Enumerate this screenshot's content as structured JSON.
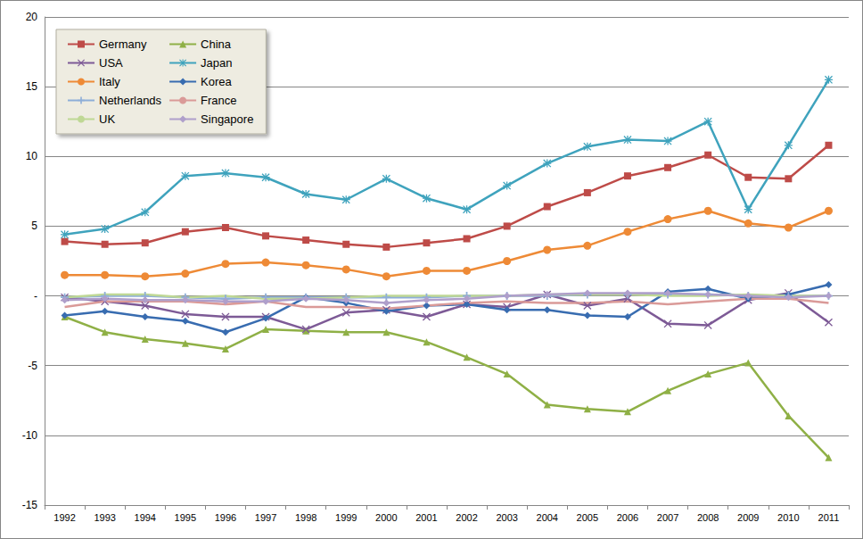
{
  "chart_data": {
    "type": "line",
    "categories": [
      "1992",
      "1993",
      "1994",
      "1995",
      "1996",
      "1997",
      "1998",
      "1999",
      "2000",
      "2001",
      "2002",
      "2003",
      "2004",
      "2005",
      "2006",
      "2007",
      "2008",
      "2009",
      "2010",
      "2011"
    ],
    "series": [
      {
        "name": "Germany",
        "color": "#BE4B48",
        "marker": "square",
        "values": [
          3.9,
          3.7,
          3.8,
          4.6,
          4.9,
          4.3,
          4.0,
          3.7,
          3.5,
          3.8,
          4.1,
          5.0,
          6.4,
          7.4,
          8.6,
          9.2,
          10.1,
          8.5,
          8.4,
          10.8
        ]
      },
      {
        "name": "China",
        "color": "#8FB046",
        "marker": "triangle",
        "values": [
          -1.5,
          -2.6,
          -3.1,
          -3.4,
          -3.8,
          -2.4,
          -2.5,
          -2.6,
          -2.6,
          -3.3,
          -4.4,
          -5.6,
          -7.8,
          -8.1,
          -8.3,
          -6.8,
          -5.6,
          -4.8,
          -8.6,
          -11.6
        ]
      },
      {
        "name": "USA",
        "color": "#7D5A96",
        "marker": "x",
        "values": [
          -0.1,
          -0.4,
          -0.7,
          -1.3,
          -1.5,
          -1.5,
          -2.4,
          -1.2,
          -1.0,
          -1.5,
          -0.6,
          -0.8,
          0.1,
          -0.7,
          -0.2,
          -2.0,
          -2.1,
          -0.3,
          0.2,
          -1.9
        ]
      },
      {
        "name": "Japan",
        "color": "#3FA3BD",
        "marker": "asterisk",
        "values": [
          4.4,
          4.8,
          6.0,
          8.6,
          8.8,
          8.5,
          7.3,
          6.9,
          8.4,
          7.0,
          6.2,
          7.9,
          9.5,
          10.7,
          11.2,
          11.1,
          12.5,
          6.2,
          10.8,
          15.5
        ]
      },
      {
        "name": "Italy",
        "color": "#EE8A36",
        "marker": "circle",
        "values": [
          1.5,
          1.5,
          1.4,
          1.6,
          2.3,
          2.4,
          2.2,
          1.9,
          1.4,
          1.8,
          1.8,
          2.5,
          3.3,
          3.6,
          4.6,
          5.5,
          6.1,
          5.2,
          4.9,
          6.1
        ]
      },
      {
        "name": "Korea",
        "color": "#386CB0",
        "marker": "diamond",
        "values": [
          -1.4,
          -1.1,
          -1.5,
          -1.8,
          -2.6,
          -1.6,
          -0.1,
          -0.5,
          -1.1,
          -0.7,
          -0.6,
          -1.0,
          -1.0,
          -1.4,
          -1.5,
          0.3,
          0.5,
          -0.2,
          0.1,
          0.8
        ]
      },
      {
        "name": "Netherlands",
        "color": "#8EAED8",
        "marker": "plus",
        "values": [
          -0.1,
          0.0,
          0.0,
          -0.1,
          -0.2,
          -0.1,
          -0.1,
          -0.1,
          -0.1,
          -0.1,
          0.0,
          0.0,
          0.0,
          0.1,
          0.1,
          0.1,
          0.1,
          0.0,
          0.0,
          0.0
        ]
      },
      {
        "name": "France",
        "color": "#DA9A98",
        "marker": "none",
        "values": [
          -0.8,
          -0.4,
          -0.4,
          -0.4,
          -0.6,
          -0.4,
          -0.8,
          -0.8,
          -0.9,
          -0.7,
          -0.5,
          -0.4,
          -0.5,
          -0.5,
          -0.4,
          -0.6,
          -0.4,
          -0.2,
          -0.2,
          -0.5
        ]
      },
      {
        "name": "UK",
        "color": "#BFD895",
        "marker": "none",
        "values": [
          -0.1,
          0.1,
          0.1,
          -0.1,
          0.0,
          -0.2,
          -0.2,
          -0.1,
          0.0,
          0.0,
          0.0,
          0.0,
          0.1,
          0.1,
          0.1,
          0.0,
          0.0,
          0.1,
          0.0,
          0.0
        ]
      },
      {
        "name": "Singapore",
        "color": "#AF9FCB",
        "marker": "diamond",
        "values": [
          -0.3,
          -0.2,
          -0.3,
          -0.3,
          -0.4,
          -0.4,
          -0.2,
          -0.3,
          -0.5,
          -0.3,
          -0.2,
          0.0,
          0.1,
          0.2,
          0.2,
          0.2,
          0.1,
          0.0,
          -0.1,
          0.0
        ]
      }
    ],
    "ylim": [
      -15,
      20
    ],
    "yticks": [
      -15,
      -10,
      -5,
      {
        "value": 0,
        "label": "-"
      },
      5,
      10,
      15,
      20
    ],
    "grid": true,
    "legend": "upper left"
  }
}
